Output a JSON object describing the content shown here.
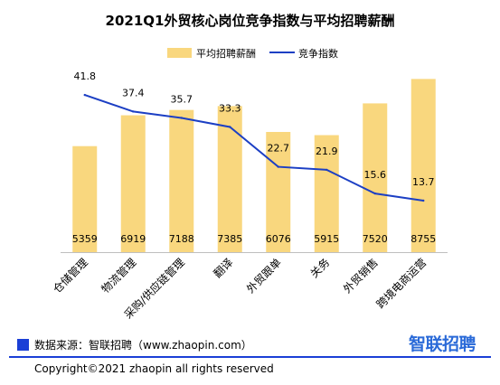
{
  "chart_data": {
    "type": "bar",
    "title": "2021Q1外贸核心岗位竞争指数与平均招聘薪酬",
    "categories": [
      "仓储管理",
      "物流管理",
      "采购/供应链管理",
      "翻译",
      "外贸跟单",
      "关务",
      "外贸销售",
      "跨境电商运营"
    ],
    "series": [
      {
        "name": "平均招聘薪酬",
        "type": "bar",
        "color": "#f9d77e",
        "values": [
          5359,
          6919,
          7188,
          7385,
          6076,
          5915,
          7520,
          8755
        ]
      },
      {
        "name": "竞争指数",
        "type": "line",
        "color": "#1c3fc4",
        "values": [
          41.8,
          37.4,
          35.7,
          33.3,
          22.7,
          21.9,
          15.6,
          13.7
        ]
      }
    ],
    "legend_position": "top-right",
    "grid": false
  },
  "source": "数据来源：智联招聘（www.zhaopin.com）",
  "brand": "智联招聘",
  "copyright": "Copyright©2021 zhaopin all rights reserved"
}
